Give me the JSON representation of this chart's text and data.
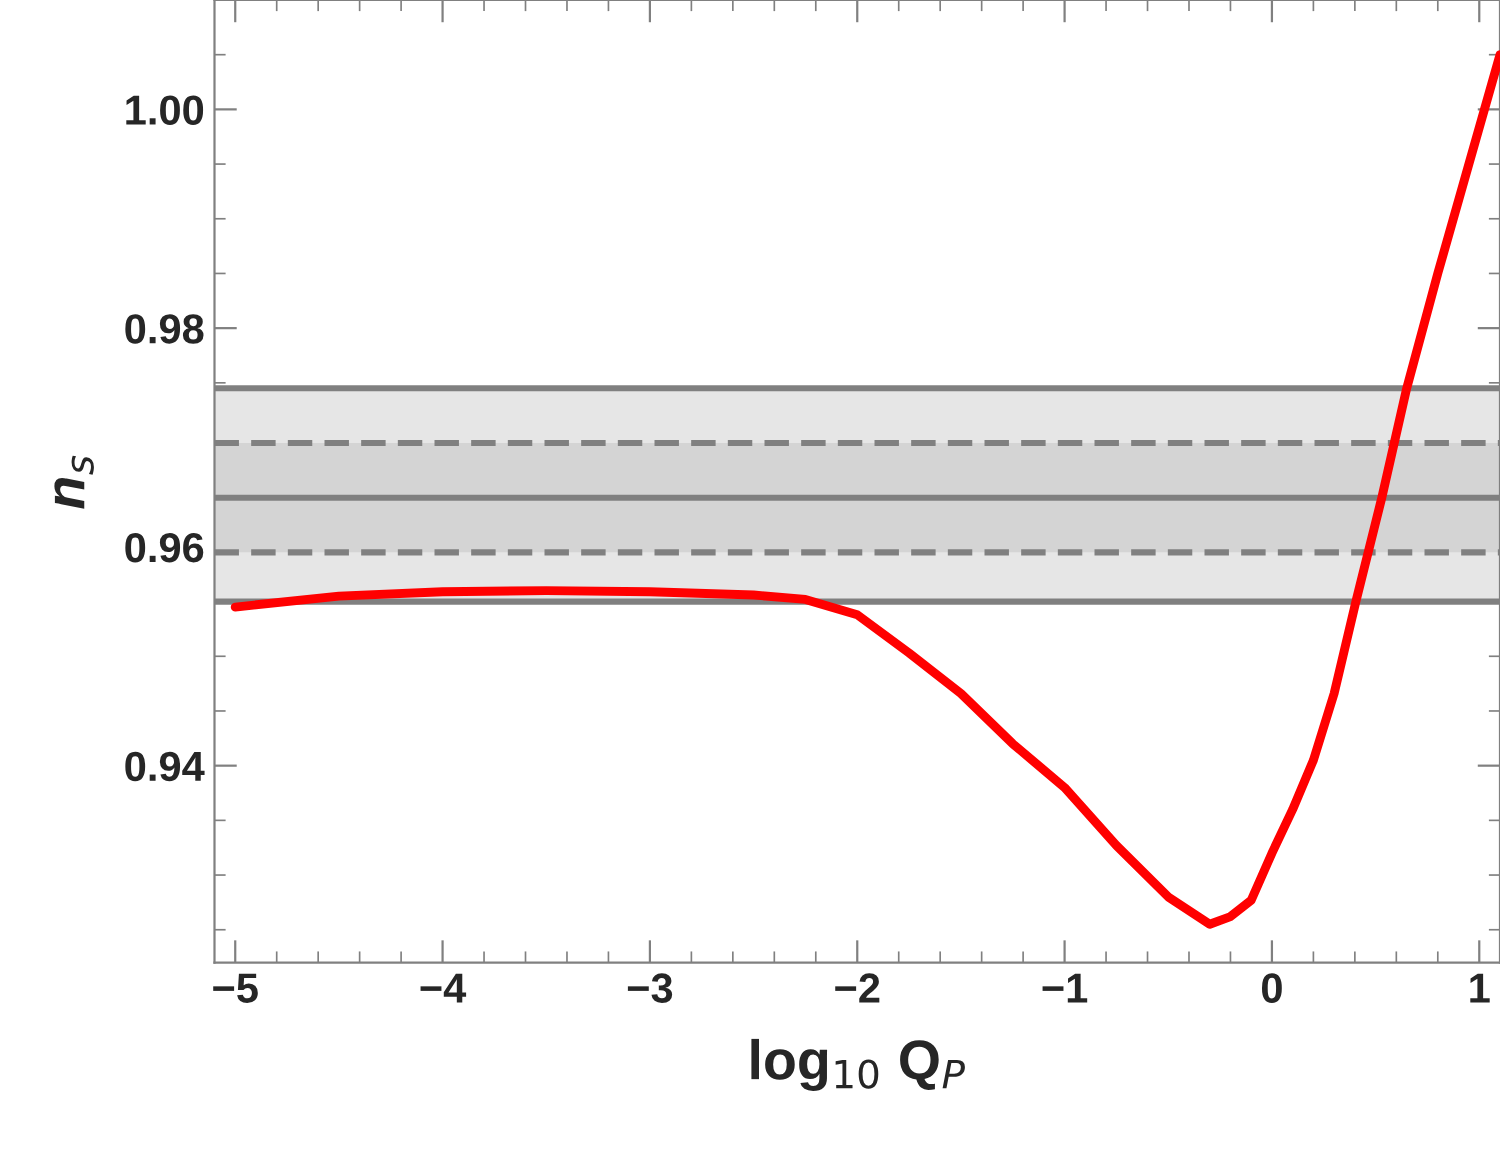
{
  "chart_data": {
    "type": "line",
    "xlabel": "log$_{10}$ Q$_{P}$",
    "ylabel": "n$_{s}$",
    "xlim": [
      -5.1,
      1.1
    ],
    "ylim": [
      0.922,
      1.01
    ],
    "xticks": [
      {
        "value": -5,
        "label": "−5"
      },
      {
        "value": -4,
        "label": "−4"
      },
      {
        "value": -3,
        "label": "−3"
      },
      {
        "value": -2,
        "label": "−2"
      },
      {
        "value": -1,
        "label": "−1"
      },
      0,
      1
    ],
    "yticks": [
      {
        "value": 0.94,
        "label": "0.94"
      },
      {
        "value": 0.96,
        "label": "0.96"
      },
      {
        "value": 0.98,
        "label": "0.98"
      },
      {
        "value": 1.0,
        "label": "1.00"
      }
    ],
    "grid": false,
    "legend": false,
    "marker": "none",
    "line_style": "solid",
    "bands": [
      {
        "axis": "y",
        "from": 0.955,
        "to": 0.9745,
        "color": "#e6e6e6"
      },
      {
        "axis": "y",
        "from": 0.9595,
        "to": 0.9695,
        "color": "#d4d4d4"
      }
    ],
    "ref_lines": [
      {
        "axis": "y",
        "value": 0.9745,
        "color": "#808080",
        "line_style": "solid"
      },
      {
        "axis": "y",
        "value": 0.9695,
        "color": "#808080",
        "line_style": "dashed"
      },
      {
        "axis": "y",
        "value": 0.9645,
        "color": "#808080",
        "line_style": "solid"
      },
      {
        "axis": "y",
        "value": 0.9595,
        "color": "#808080",
        "line_style": "dashed"
      },
      {
        "axis": "y",
        "value": 0.955,
        "color": "#808080",
        "line_style": "solid"
      }
    ],
    "x": [
      -5.0,
      -4.5,
      -4.0,
      -3.5,
      -3.0,
      -2.5,
      -2.25,
      -2.0,
      -1.75,
      -1.5,
      -1.25,
      -1.0,
      -0.75,
      -0.5,
      -0.3,
      -0.2,
      -0.1,
      0.0,
      0.1,
      0.2,
      0.3,
      0.405,
      0.53,
      0.65,
      0.8,
      0.95,
      1.1
    ],
    "series": [
      {
        "color": "#ff0000",
        "values": [
          0.9545,
          0.9555,
          0.9559,
          0.956,
          0.9559,
          0.9556,
          0.9552,
          0.9538,
          0.9503,
          0.9466,
          0.942,
          0.938,
          0.9327,
          0.928,
          0.9255,
          0.9262,
          0.9277,
          0.932,
          0.936,
          0.9405,
          0.9466,
          0.955,
          0.9645,
          0.9745,
          0.985,
          0.995,
          1.005
        ]
      }
    ]
  }
}
